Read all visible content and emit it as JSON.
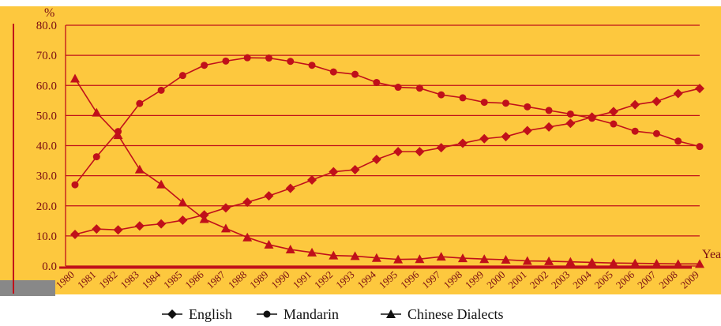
{
  "chart_data": {
    "type": "line",
    "title": "",
    "y_unit_label": "%",
    "xlabel": "Year",
    "ylabel": "",
    "ylim": [
      0,
      80
    ],
    "y_ticks": [
      "0.0",
      "10.0",
      "20.0",
      "30.0",
      "40.0",
      "50.0",
      "60.0",
      "70.0",
      "80.0"
    ],
    "x": [
      "1980",
      "1981",
      "1982",
      "1983",
      "1984",
      "1985",
      "1986",
      "1987",
      "1988",
      "1989",
      "1990",
      "1991",
      "1992",
      "1993",
      "1994",
      "1995",
      "1996",
      "1997",
      "1998",
      "1999",
      "2000",
      "2001",
      "2002",
      "2003",
      "2004",
      "2005",
      "2006",
      "2007",
      "2008",
      "2009"
    ],
    "grid": true,
    "legend_position": "bottom",
    "series": [
      {
        "name": "English",
        "marker": "diamond",
        "values": [
          10.5,
          12.3,
          12.0,
          13.3,
          14.0,
          15.2,
          17.0,
          19.3,
          21.2,
          23.3,
          25.8,
          28.6,
          31.3,
          32.0,
          35.4,
          38.0,
          38.0,
          39.3,
          40.8,
          42.3,
          43.0,
          45.0,
          46.2,
          47.4,
          49.5,
          51.3,
          53.6,
          54.7,
          57.3,
          59.0
        ]
      },
      {
        "name": "Mandarin",
        "marker": "circle",
        "values": [
          27.0,
          36.3,
          44.7,
          54.0,
          58.4,
          63.3,
          66.7,
          68.1,
          69.2,
          69.1,
          68.0,
          66.7,
          64.5,
          63.7,
          61.0,
          59.4,
          59.1,
          56.9,
          55.9,
          54.4,
          54.1,
          52.9,
          51.7,
          50.5,
          49.1,
          47.2,
          44.8,
          44.0,
          41.5,
          39.7
        ]
      },
      {
        "name": "Chinese Dialects",
        "marker": "triangle",
        "values": [
          62.3,
          51.0,
          43.5,
          32.1,
          27.1,
          21.1,
          15.6,
          12.5,
          9.5,
          7.1,
          5.5,
          4.5,
          3.5,
          3.3,
          2.7,
          2.2,
          2.3,
          3.1,
          2.6,
          2.3,
          2.1,
          1.7,
          1.6,
          1.4,
          1.2,
          1.0,
          0.9,
          0.8,
          0.7,
          0.7
        ]
      }
    ]
  },
  "colors": {
    "plot_background": "#FDC83E",
    "series_color": "#C0101A",
    "axis_text": "#7a0c12"
  }
}
